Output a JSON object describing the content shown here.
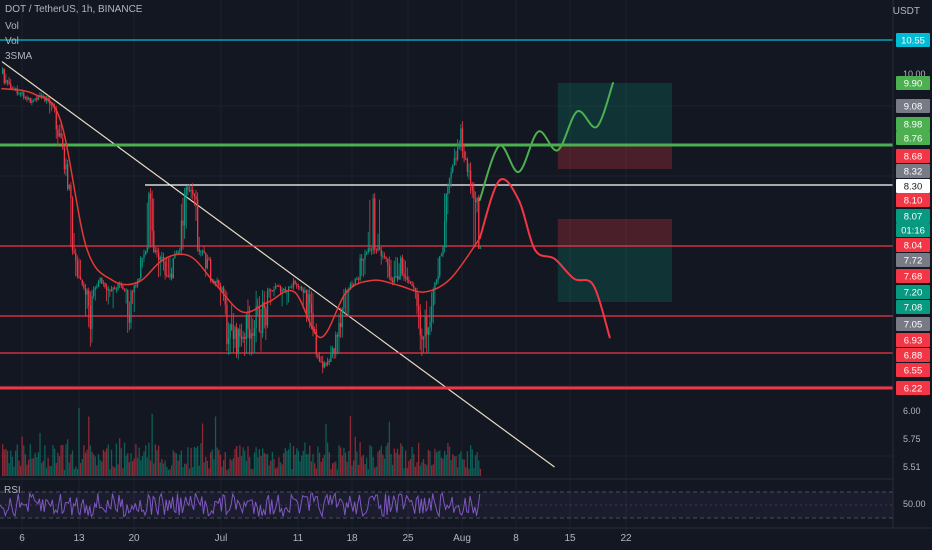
{
  "header": {
    "title": "DOT / TetherUS, 1h, BINANCE",
    "vol1": "Vol",
    "vol2": "Vol",
    "sma": "3SMA",
    "currency": "USDT"
  },
  "rsi": {
    "label": "RSI",
    "level_label": "50.00"
  },
  "chart_data": {
    "type": "line",
    "title": "DOT / TetherUS, 1h, BINANCE",
    "ylabel": "USDT",
    "x_ticks": [
      "6",
      "13",
      "20",
      "Jul",
      "11",
      "18",
      "25",
      "Aug",
      "8",
      "15",
      "22"
    ],
    "y_ticks": [
      "10.00",
      "6.00",
      "5.75",
      "5.51"
    ],
    "price_labels": [
      {
        "value": "10.55",
        "color": "#00bcd4"
      },
      {
        "value": "9.90",
        "color": "#4caf50"
      },
      {
        "value": "9.08",
        "color": "#787b86"
      },
      {
        "value": "8.98",
        "color": "#4caf50"
      },
      {
        "value": "8.76",
        "color": "#4caf50"
      },
      {
        "value": "8.68",
        "color": "#f23645"
      },
      {
        "value": "8.32",
        "color": "#787b86"
      },
      {
        "value": "8.30",
        "color": "#ffffff"
      },
      {
        "value": "8.10",
        "color": "#f23645"
      },
      {
        "value": "8.07",
        "color": "#089981"
      },
      {
        "value": "01:16",
        "color": "#089981"
      },
      {
        "value": "8.04",
        "color": "#f23645"
      },
      {
        "value": "7.72",
        "color": "#787b86"
      },
      {
        "value": "7.68",
        "color": "#f23645"
      },
      {
        "value": "7.20",
        "color": "#089981"
      },
      {
        "value": "7.08",
        "color": "#089981"
      },
      {
        "value": "7.05",
        "color": "#787b86"
      },
      {
        "value": "6.93",
        "color": "#f23645"
      },
      {
        "value": "6.88",
        "color": "#f23645"
      },
      {
        "value": "6.55",
        "color": "#f23645"
      },
      {
        "value": "6.22",
        "color": "#f23645"
      }
    ],
    "horizontal_levels": [
      {
        "value": 10.55,
        "color": "#00bcd4"
      },
      {
        "value": 8.76,
        "color": "#4caf50"
      },
      {
        "value": 8.3,
        "color": "#ffffff"
      },
      {
        "value": 8.04,
        "color": "#f23645"
      },
      {
        "value": 7.08,
        "color": "#f23645"
      },
      {
        "value": 6.88,
        "color": "#f23645"
      },
      {
        "value": 6.22,
        "color": "#f23645"
      }
    ],
    "price_path": [
      {
        "x": 0,
        "y": 10.0
      },
      {
        "x": 3,
        "y": 9.7
      },
      {
        "x": 6,
        "y": 9.5
      },
      {
        "x": 9,
        "y": 9.2
      },
      {
        "x": 12,
        "y": 9.45
      },
      {
        "x": 15,
        "y": 9.1
      },
      {
        "x": 18,
        "y": 8.8
      },
      {
        "x": 21,
        "y": 8.1
      },
      {
        "x": 24,
        "y": 7.5
      },
      {
        "x": 27,
        "y": 7.05
      },
      {
        "x": 30,
        "y": 7.6
      },
      {
        "x": 33,
        "y": 7.2
      },
      {
        "x": 36,
        "y": 7.4
      },
      {
        "x": 39,
        "y": 7.1
      },
      {
        "x": 42,
        "y": 7.6
      },
      {
        "x": 45,
        "y": 8.1
      },
      {
        "x": 48,
        "y": 7.8
      },
      {
        "x": 51,
        "y": 7.6
      },
      {
        "x": 54,
        "y": 7.9
      },
      {
        "x": 57,
        "y": 8.25
      },
      {
        "x": 60,
        "y": 8.0
      },
      {
        "x": 63,
        "y": 7.7
      },
      {
        "x": 66,
        "y": 7.5
      },
      {
        "x": 69,
        "y": 7.0
      },
      {
        "x": 72,
        "y": 6.95
      },
      {
        "x": 75,
        "y": 7.0
      },
      {
        "x": 78,
        "y": 7.05
      },
      {
        "x": 81,
        "y": 7.1
      },
      {
        "x": 84,
        "y": 7.35
      },
      {
        "x": 87,
        "y": 7.25
      },
      {
        "x": 90,
        "y": 7.5
      },
      {
        "x": 93,
        "y": 7.2
      },
      {
        "x": 96,
        "y": 6.95
      },
      {
        "x": 99,
        "y": 6.6
      },
      {
        "x": 102,
        "y": 6.9
      },
      {
        "x": 105,
        "y": 7.1
      },
      {
        "x": 108,
        "y": 7.5
      },
      {
        "x": 111,
        "y": 7.8
      },
      {
        "x": 114,
        "y": 8.05
      },
      {
        "x": 117,
        "y": 7.8
      },
      {
        "x": 120,
        "y": 7.55
      },
      {
        "x": 123,
        "y": 7.75
      },
      {
        "x": 126,
        "y": 7.3
      },
      {
        "x": 129,
        "y": 6.9
      },
      {
        "x": 132,
        "y": 7.2
      },
      {
        "x": 135,
        "y": 7.85
      },
      {
        "x": 138,
        "y": 8.4
      },
      {
        "x": 141,
        "y": 8.85
      },
      {
        "x": 144,
        "y": 8.3
      },
      {
        "x": 147,
        "y": 7.95
      }
    ],
    "sma_path": [
      {
        "x": 0,
        "y": 9.7
      },
      {
        "x": 10,
        "y": 9.5
      },
      {
        "x": 18,
        "y": 9.0
      },
      {
        "x": 26,
        "y": 8.0
      },
      {
        "x": 34,
        "y": 7.55
      },
      {
        "x": 42,
        "y": 7.5
      },
      {
        "x": 50,
        "y": 7.75
      },
      {
        "x": 58,
        "y": 7.8
      },
      {
        "x": 66,
        "y": 7.4
      },
      {
        "x": 74,
        "y": 7.1
      },
      {
        "x": 82,
        "y": 7.15
      },
      {
        "x": 90,
        "y": 7.2
      },
      {
        "x": 98,
        "y": 6.95
      },
      {
        "x": 106,
        "y": 7.2
      },
      {
        "x": 114,
        "y": 7.55
      },
      {
        "x": 122,
        "y": 7.4
      },
      {
        "x": 130,
        "y": 7.2
      },
      {
        "x": 138,
        "y": 7.6
      },
      {
        "x": 147,
        "y": 8.05
      }
    ],
    "bull_projection": [
      {
        "x": 147,
        "y": 8.1
      },
      {
        "x": 153,
        "y": 8.75
      },
      {
        "x": 159,
        "y": 8.45
      },
      {
        "x": 165,
        "y": 8.9
      },
      {
        "x": 171,
        "y": 8.7
      },
      {
        "x": 177,
        "y": 9.05
      },
      {
        "x": 183,
        "y": 8.95
      },
      {
        "x": 188,
        "y": 9.9
      }
    ],
    "bear_projection": [
      {
        "x": 147,
        "y": 8.05
      },
      {
        "x": 153,
        "y": 8.35
      },
      {
        "x": 159,
        "y": 8.1
      },
      {
        "x": 164,
        "y": 7.95
      },
      {
        "x": 170,
        "y": 7.75
      },
      {
        "x": 176,
        "y": 7.6
      },
      {
        "x": 182,
        "y": 7.4
      },
      {
        "x": 187,
        "y": 6.95
      }
    ],
    "trendline": [
      {
        "x": 0,
        "y": 10.2
      },
      {
        "x": 170,
        "y": 5.51
      }
    ],
    "long_position": {
      "entry": 8.76,
      "target": 9.9,
      "stop": 8.3
    },
    "short_position": {
      "entry": 8.04,
      "target": 7.05,
      "stop": 8.3
    },
    "colors": {
      "background": "#131722",
      "up": "#089981",
      "down": "#f23645",
      "sma": "#e53935",
      "trendline": "#e8dcc0",
      "bull": "#4caf50",
      "bear": "#f23645"
    }
  }
}
